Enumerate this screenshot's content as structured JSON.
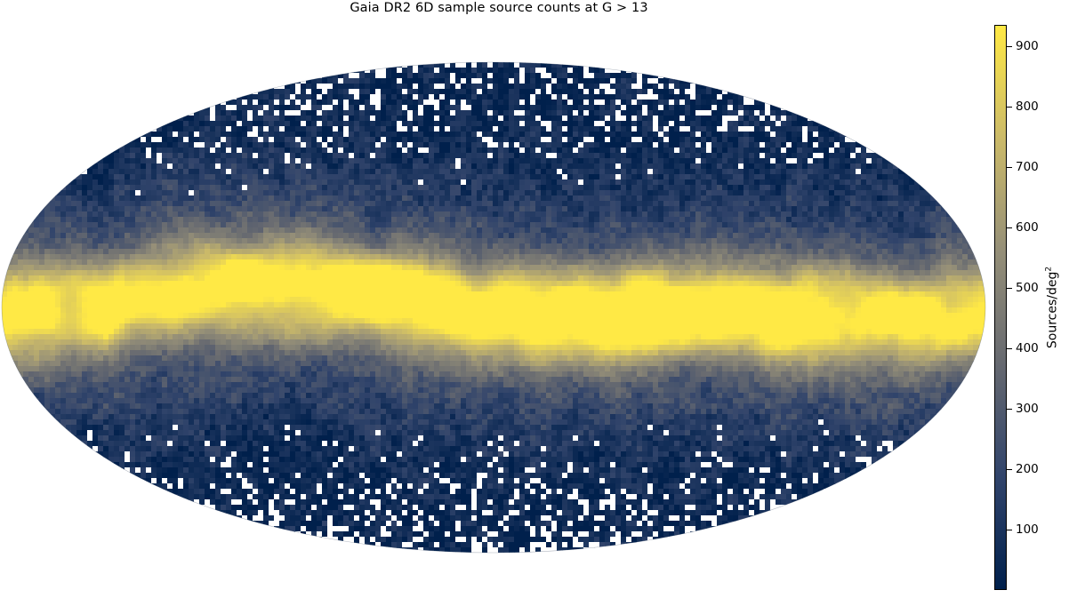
{
  "title": "Gaia DR2 6D sample source counts at G > 13",
  "colorbar": {
    "label_main": "Sources/deg",
    "label_exponent": "2",
    "min": 0,
    "max": 935,
    "ticks": [
      "100",
      "200",
      "300",
      "400",
      "500",
      "600",
      "700",
      "800",
      "900"
    ],
    "colormap": [
      "#00204c",
      "#31446b",
      "#666970",
      "#958f78",
      "#cbba69",
      "#ffe945"
    ]
  },
  "map": {
    "projection": "Mollweide (Aitoff-style all-sky)",
    "empty_pixel_color": "#ffffff",
    "feature": "Galactic plane band of high source density"
  }
}
